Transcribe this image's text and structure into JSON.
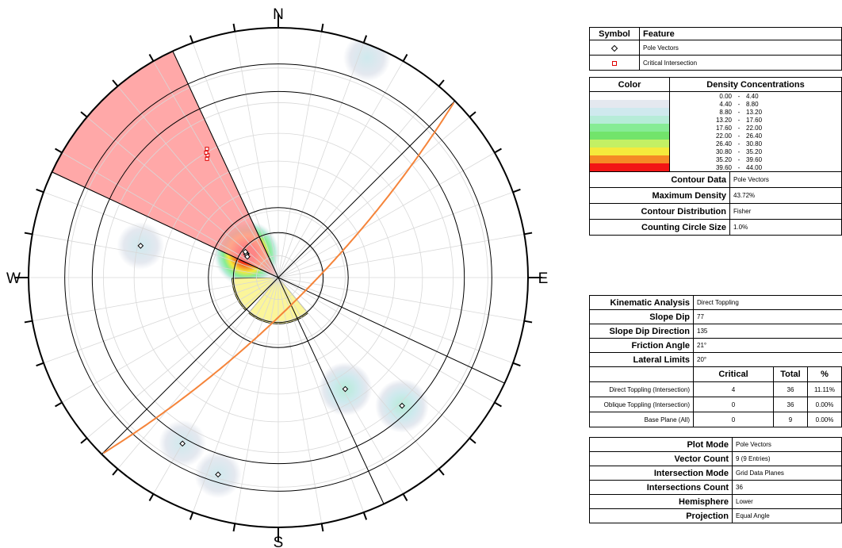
{
  "compass": {
    "n": "N",
    "e": "E",
    "s": "S",
    "w": "W"
  },
  "legend": {
    "symbol_header": "Symbol",
    "feature_header": "Feature",
    "items": [
      {
        "symbol": "diamond-icon",
        "label": "Pole Vectors",
        "color": "#000000"
      },
      {
        "symbol": "square-icon",
        "label": "Critical Intersection",
        "color": "#e00000"
      }
    ]
  },
  "density": {
    "color_header": "Color",
    "concentration_header": "Density Concentrations",
    "ranges": [
      {
        "from": "0.00",
        "to": "4.40",
        "color": "#ffffff"
      },
      {
        "from": "4.40",
        "to": "8.80",
        "color": "#e4e8ef"
      },
      {
        "from": "8.80",
        "to": "13.20",
        "color": "#cfe9ee"
      },
      {
        "from": "13.20",
        "to": "17.60",
        "color": "#b6ecd8"
      },
      {
        "from": "17.60",
        "to": "22.00",
        "color": "#86ec95"
      },
      {
        "from": "22.00",
        "to": "26.40",
        "color": "#72e46b"
      },
      {
        "from": "26.40",
        "to": "30.80",
        "color": "#c3f064"
      },
      {
        "from": "30.80",
        "to": "35.20",
        "color": "#f5ea3c"
      },
      {
        "from": "35.20",
        "to": "39.60",
        "color": "#f58a25"
      },
      {
        "from": "39.60",
        "to": "44.00",
        "color": "#f21515"
      }
    ],
    "meta": [
      {
        "label": "Contour Data",
        "value": "Pole Vectors"
      },
      {
        "label": "Maximum Density",
        "value": "43.72%"
      },
      {
        "label": "Contour Distribution",
        "value": "Fisher"
      },
      {
        "label": "Counting Circle Size",
        "value": "1.0%"
      }
    ]
  },
  "kinematic": {
    "rows": [
      {
        "label": "Kinematic Analysis",
        "value": "Direct Toppling"
      },
      {
        "label": "Slope Dip",
        "value": "77"
      },
      {
        "label": "Slope Dip Direction",
        "value": "135"
      },
      {
        "label": "Friction Angle",
        "value": "21°"
      },
      {
        "label": "Lateral Limits",
        "value": "20°"
      }
    ],
    "col_headers": {
      "critical": "Critical",
      "total": "Total",
      "pct": "%"
    },
    "results": [
      {
        "name": "Direct Toppling (Intersection)",
        "critical": "4",
        "total": "36",
        "pct": "11.11%"
      },
      {
        "name": "Oblique Toppling (Intersection)",
        "critical": "0",
        "total": "36",
        "pct": "0.00%"
      },
      {
        "name": "Base Plane (All)",
        "critical": "0",
        "total": "9",
        "pct": "0.00%"
      }
    ]
  },
  "plot": {
    "rows": [
      {
        "label": "Plot Mode",
        "value": "Pole Vectors"
      },
      {
        "label": "Vector Count",
        "value": "9 (9 Entries)"
      },
      {
        "label": "Intersection Mode",
        "value": "Grid Data Planes"
      },
      {
        "label": "Intersections Count",
        "value": "36"
      },
      {
        "label": "Hemisphere",
        "value": "Lower"
      },
      {
        "label": "Projection",
        "value": "Equal Angle"
      }
    ]
  },
  "chart_data": {
    "type": "scatter",
    "projection": "Equal Angle",
    "hemisphere": "Lower",
    "slope": {
      "dip": 77,
      "dip_direction": 135
    },
    "friction_angle": 21,
    "lateral_limits": 20,
    "pole_vectors": [
      {
        "trend": 149,
        "plunge": 35
      },
      {
        "trend": 136,
        "plunge": 19
      },
      {
        "trend": 197,
        "plunge": 11
      },
      {
        "trend": 210,
        "plunge": 15
      },
      {
        "trend": 283,
        "plunge": 31
      },
      {
        "trend": 307,
        "plunge": 72
      },
      {
        "trend": 306,
        "plunge": 72
      },
      {
        "trend": 304,
        "plunge": 73
      },
      {
        "trend": 308,
        "plunge": 71
      }
    ],
    "critical_intersections": [
      {
        "trend": 330,
        "plunge": 31
      },
      {
        "trend": 330,
        "plunge": 30
      },
      {
        "trend": 329,
        "plunge": 32
      },
      {
        "trend": 331,
        "plunge": 29
      }
    ],
    "contours": [
      {
        "trend": 307,
        "plunge": 72,
        "peak": 43.72
      },
      {
        "trend": 149,
        "plunge": 35,
        "peak": 12
      },
      {
        "trend": 136,
        "plunge": 19,
        "peak": 12
      },
      {
        "trend": 197,
        "plunge": 11,
        "peak": 9
      },
      {
        "trend": 210,
        "plunge": 15,
        "peak": 9
      },
      {
        "trend": 283,
        "plunge": 31,
        "peak": 9
      },
      {
        "trend": 22,
        "plunge": 3,
        "peak": 6
      }
    ]
  }
}
